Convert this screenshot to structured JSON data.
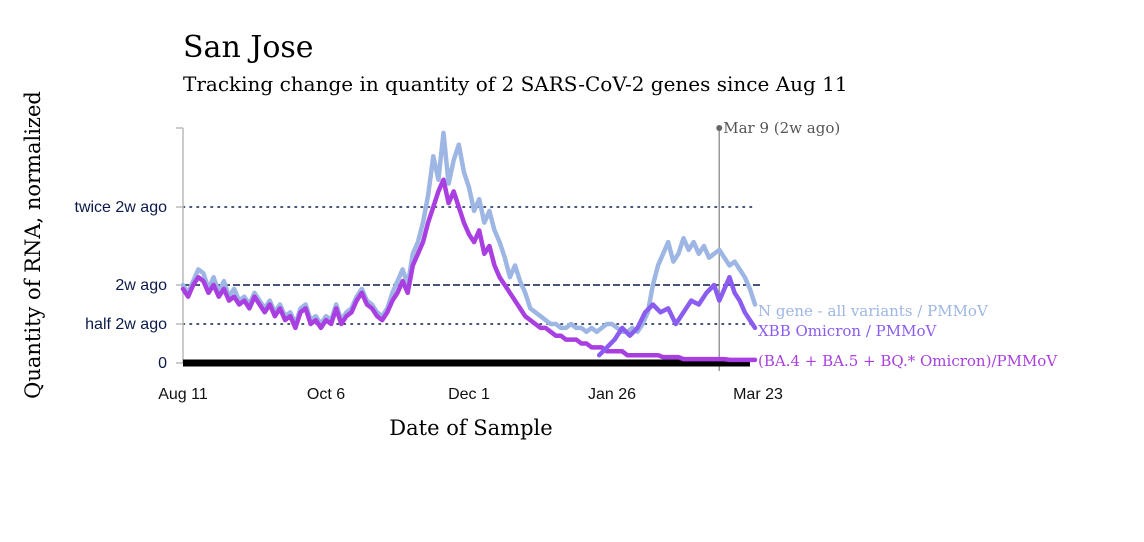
{
  "chart_data": {
    "type": "line",
    "title": "San Jose",
    "subtitle": "Tracking change in quantity of 2 SARS-CoV-2 genes since Aug 11",
    "xlabel": "Date of Sample",
    "ylabel": "Quantity of RNA, normalized",
    "x_ticks": [
      "Aug 11",
      "Oct 6",
      "Dec 1",
      "Jan 26",
      "Mar 23"
    ],
    "x_range_days": [
      0,
      224
    ],
    "y_ticks": [
      {
        "label": "0",
        "value": 0,
        "style": "none"
      },
      {
        "label": "half 2w ago",
        "value": 1.0,
        "style": "dotted"
      },
      {
        "label": "2w ago",
        "value": 2.0,
        "style": "dashed"
      },
      {
        "label": "twice 2w ago",
        "value": 4.0,
        "style": "dotted"
      }
    ],
    "annotation": {
      "label": "Mar 9 (2w ago)",
      "day": 210
    },
    "colors": {
      "n_gene": "#9db6e4",
      "xbb": "#8a5cf0",
      "ba": "#a93fe0",
      "axis": "#0b1a4a"
    },
    "series": [
      {
        "name": "N gene - all variants / PMMoV",
        "key": "n_gene",
        "x": [
          0,
          2,
          4,
          6,
          8,
          10,
          12,
          14,
          16,
          18,
          20,
          22,
          24,
          26,
          28,
          30,
          32,
          34,
          36,
          38,
          40,
          42,
          44,
          46,
          48,
          50,
          52,
          54,
          56,
          58,
          60,
          62,
          64,
          66,
          68,
          70,
          72,
          74,
          76,
          78,
          80,
          82,
          84,
          86,
          88,
          90,
          92,
          94,
          96,
          98,
          100,
          102,
          104,
          106,
          108,
          110,
          112,
          114,
          116,
          118,
          120,
          122,
          124,
          126,
          128,
          130,
          132,
          134,
          136,
          138,
          140,
          142,
          144,
          146,
          148,
          150,
          152,
          154,
          156,
          158,
          160,
          162,
          164,
          166,
          168,
          170,
          172,
          174,
          176,
          178,
          180,
          182,
          184,
          186,
          188,
          190,
          192,
          194,
          196,
          198,
          200,
          202,
          204,
          206,
          208,
          210,
          212,
          214,
          216,
          218,
          220,
          222,
          224
        ],
        "values": [
          2.0,
          1.8,
          2.1,
          2.4,
          2.3,
          1.9,
          2.2,
          1.8,
          2.1,
          1.7,
          1.9,
          1.6,
          1.7,
          1.5,
          1.8,
          1.6,
          1.4,
          1.6,
          1.3,
          1.5,
          1.2,
          1.3,
          1.0,
          1.4,
          1.5,
          1.1,
          1.2,
          1.0,
          1.2,
          1.1,
          1.5,
          1.1,
          1.3,
          1.4,
          1.7,
          1.9,
          1.6,
          1.5,
          1.3,
          1.2,
          1.4,
          1.8,
          2.1,
          2.4,
          2.0,
          2.8,
          3.1,
          3.6,
          4.3,
          5.3,
          4.7,
          5.9,
          4.6,
          5.2,
          5.6,
          4.9,
          4.5,
          3.9,
          4.2,
          3.6,
          3.9,
          3.4,
          3.1,
          2.7,
          2.2,
          2.5,
          2.1,
          1.8,
          1.4,
          1.3,
          1.2,
          1.1,
          1.0,
          1.0,
          0.9,
          0.9,
          1.0,
          0.9,
          0.9,
          0.8,
          0.9,
          0.8,
          0.9,
          1.0,
          1.0,
          0.9,
          0.8,
          0.8,
          0.9,
          0.8,
          1.0,
          1.3,
          2.0,
          2.5,
          2.8,
          3.1,
          2.6,
          2.8,
          3.2,
          2.9,
          3.1,
          2.8,
          3.0,
          2.7,
          2.8,
          2.9,
          2.7,
          2.5,
          2.6,
          2.4,
          2.2,
          1.9,
          1.5
        ]
      },
      {
        "name": "XBB Omicron / PMMoV",
        "key": "xbb",
        "x": [
          163,
          166,
          169,
          172,
          175,
          178,
          181,
          184,
          187,
          190,
          193,
          196,
          199,
          202,
          205,
          208,
          210,
          212,
          214,
          216,
          218,
          220,
          222,
          224
        ],
        "values": [
          0.2,
          0.4,
          0.6,
          0.9,
          0.7,
          0.9,
          1.3,
          1.5,
          1.3,
          1.4,
          1.0,
          1.3,
          1.6,
          1.5,
          1.8,
          2.0,
          1.6,
          1.9,
          2.2,
          1.8,
          1.6,
          1.3,
          1.1,
          0.9
        ]
      },
      {
        "name": "(BA.4 + BA.5 + BQ.* Omicron)/PMMoV",
        "key": "ba",
        "x": [
          0,
          2,
          4,
          6,
          8,
          10,
          12,
          14,
          16,
          18,
          20,
          22,
          24,
          26,
          28,
          30,
          32,
          34,
          36,
          38,
          40,
          42,
          44,
          46,
          48,
          50,
          52,
          54,
          56,
          58,
          60,
          62,
          64,
          66,
          68,
          70,
          72,
          74,
          76,
          78,
          80,
          82,
          84,
          86,
          88,
          90,
          92,
          94,
          96,
          98,
          100,
          102,
          104,
          106,
          108,
          110,
          112,
          114,
          116,
          118,
          120,
          122,
          124,
          126,
          128,
          130,
          132,
          134,
          136,
          138,
          140,
          142,
          144,
          146,
          148,
          150,
          152,
          154,
          156,
          158,
          160,
          162,
          164,
          166,
          168,
          170,
          172,
          174,
          176,
          178,
          180,
          182,
          184,
          186,
          188,
          190,
          192,
          194,
          196,
          198,
          200,
          202,
          204,
          206,
          208,
          210,
          212,
          214,
          216,
          218,
          220,
          222,
          224
        ],
        "values": [
          1.9,
          1.7,
          2.0,
          2.2,
          2.1,
          1.8,
          2.0,
          1.7,
          1.9,
          1.6,
          1.7,
          1.5,
          1.6,
          1.4,
          1.7,
          1.5,
          1.3,
          1.5,
          1.2,
          1.4,
          1.1,
          1.2,
          0.9,
          1.3,
          1.4,
          1.0,
          1.1,
          0.9,
          1.1,
          1.0,
          1.4,
          1.0,
          1.2,
          1.3,
          1.6,
          1.8,
          1.5,
          1.4,
          1.2,
          1.1,
          1.3,
          1.6,
          1.8,
          2.1,
          1.8,
          2.5,
          2.8,
          3.1,
          3.6,
          4.0,
          4.4,
          4.7,
          4.1,
          4.4,
          4.0,
          3.6,
          3.3,
          3.1,
          3.4,
          2.8,
          3.0,
          2.5,
          2.2,
          2.0,
          1.8,
          1.6,
          1.4,
          1.2,
          1.1,
          1.0,
          0.9,
          0.9,
          0.8,
          0.7,
          0.7,
          0.6,
          0.6,
          0.6,
          0.5,
          0.5,
          0.4,
          0.4,
          0.4,
          0.3,
          0.3,
          0.3,
          0.3,
          0.2,
          0.2,
          0.2,
          0.2,
          0.2,
          0.2,
          0.2,
          0.15,
          0.15,
          0.15,
          0.15,
          0.1,
          0.1,
          0.1,
          0.1,
          0.1,
          0.1,
          0.1,
          0.1,
          0.1,
          0.08,
          0.08,
          0.08,
          0.08,
          0.08,
          0.08
        ]
      }
    ]
  }
}
